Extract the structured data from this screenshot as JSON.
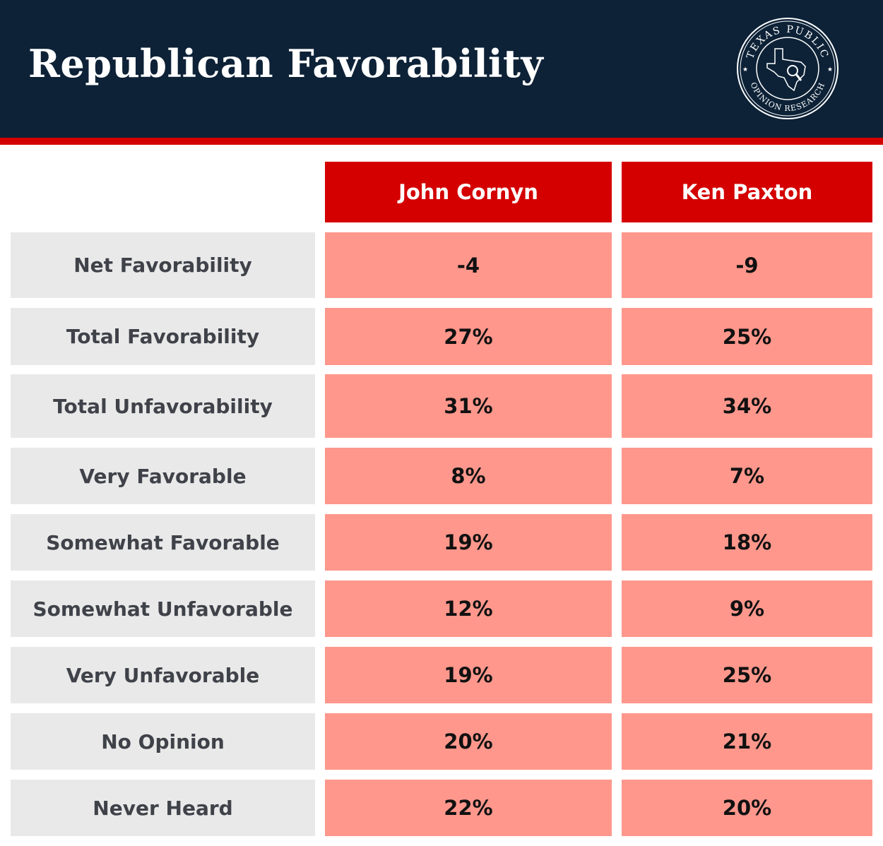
{
  "header": {
    "title": "Republican Favorability"
  },
  "logo": {
    "text_top": "TEXAS PUBLIC",
    "text_bottom": "OPINION RESEARCH"
  },
  "colors": {
    "navy": "#0d2237",
    "red": "#d40000",
    "salmon": "#ff978c",
    "label_bg": "#e9e9e9"
  },
  "chart_data": {
    "type": "table",
    "title": "Republican Favorability",
    "columns": [
      "John Cornyn",
      "Ken Paxton"
    ],
    "rows": [
      {
        "label": "Net Favorability",
        "values": [
          "-4",
          "-9"
        ]
      },
      {
        "label": "Total Favorability",
        "values": [
          "27%",
          "25%"
        ]
      },
      {
        "label": "Total Unfavorability",
        "values": [
          "31%",
          "34%"
        ]
      },
      {
        "label": "Very Favorable",
        "values": [
          "8%",
          "7%"
        ]
      },
      {
        "label": "Somewhat Favorable",
        "values": [
          "19%",
          "18%"
        ]
      },
      {
        "label": "Somewhat Unfavorable",
        "values": [
          "12%",
          "9%"
        ]
      },
      {
        "label": "Very Unfavorable",
        "values": [
          "19%",
          "25%"
        ]
      },
      {
        "label": "No Opinion",
        "values": [
          "20%",
          "21%"
        ]
      },
      {
        "label": "Never Heard",
        "values": [
          "22%",
          "20%"
        ]
      }
    ]
  }
}
